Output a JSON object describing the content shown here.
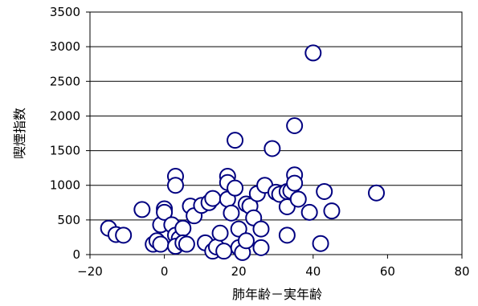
{
  "chart_data": {
    "type": "scatter",
    "xlabel": "肺年齢－実年齢",
    "ylabel": "喫煙指数",
    "xlim": [
      -20,
      80
    ],
    "ylim": [
      0,
      3500
    ],
    "x_ticks": [
      -20,
      0,
      20,
      40,
      60,
      80
    ],
    "x_tick_labels": [
      "−20",
      "0",
      "20",
      "40",
      "60",
      "80"
    ],
    "y_ticks": [
      0,
      500,
      1000,
      1500,
      2000,
      2500,
      3000,
      3500
    ],
    "y_tick_labels": [
      "0",
      "500",
      "1000",
      "1500",
      "2000",
      "2500",
      "3000",
      "3500"
    ],
    "grid": {
      "horizontal": true,
      "vertical": false
    },
    "legend": "none",
    "marker": {
      "shape": "circle",
      "fill": "#ffffff",
      "stroke": "#000080"
    },
    "points": [
      {
        "x": -15,
        "y": 380
      },
      {
        "x": -13,
        "y": 290
      },
      {
        "x": -11,
        "y": 280
      },
      {
        "x": -6,
        "y": 650
      },
      {
        "x": -3,
        "y": 150
      },
      {
        "x": -2,
        "y": 200
      },
      {
        "x": -1,
        "y": 430
      },
      {
        "x": -1,
        "y": 150
      },
      {
        "x": 0,
        "y": 660
      },
      {
        "x": 0,
        "y": 610
      },
      {
        "x": 2,
        "y": 430
      },
      {
        "x": 3,
        "y": 1130
      },
      {
        "x": 3,
        "y": 1000
      },
      {
        "x": 3,
        "y": 280
      },
      {
        "x": 4,
        "y": 230
      },
      {
        "x": 3,
        "y": 120
      },
      {
        "x": 5,
        "y": 380
      },
      {
        "x": 5,
        "y": 170
      },
      {
        "x": 6,
        "y": 150
      },
      {
        "x": 7,
        "y": 700
      },
      {
        "x": 8,
        "y": 560
      },
      {
        "x": 10,
        "y": 710
      },
      {
        "x": 11,
        "y": 170
      },
      {
        "x": 12,
        "y": 750
      },
      {
        "x": 13,
        "y": 810
      },
      {
        "x": 13,
        "y": 50
      },
      {
        "x": 14,
        "y": 110
      },
      {
        "x": 15,
        "y": 310
      },
      {
        "x": 16,
        "y": 50
      },
      {
        "x": 17,
        "y": 1130
      },
      {
        "x": 17,
        "y": 1040
      },
      {
        "x": 17,
        "y": 800
      },
      {
        "x": 18,
        "y": 600
      },
      {
        "x": 19,
        "y": 960
      },
      {
        "x": 19,
        "y": 1650
      },
      {
        "x": 20,
        "y": 370
      },
      {
        "x": 20,
        "y": 100
      },
      {
        "x": 21,
        "y": 30
      },
      {
        "x": 22,
        "y": 730
      },
      {
        "x": 22,
        "y": 200
      },
      {
        "x": 23,
        "y": 700
      },
      {
        "x": 24,
        "y": 530
      },
      {
        "x": 25,
        "y": 880
      },
      {
        "x": 26,
        "y": 370
      },
      {
        "x": 26,
        "y": 100
      },
      {
        "x": 27,
        "y": 1000
      },
      {
        "x": 29,
        "y": 1530
      },
      {
        "x": 30,
        "y": 900
      },
      {
        "x": 31,
        "y": 870
      },
      {
        "x": 33,
        "y": 910
      },
      {
        "x": 33,
        "y": 690
      },
      {
        "x": 33,
        "y": 280
      },
      {
        "x": 34,
        "y": 920
      },
      {
        "x": 35,
        "y": 1860
      },
      {
        "x": 35,
        "y": 1150
      },
      {
        "x": 35,
        "y": 1030
      },
      {
        "x": 36,
        "y": 800
      },
      {
        "x": 39,
        "y": 610
      },
      {
        "x": 40,
        "y": 2910
      },
      {
        "x": 42,
        "y": 160
      },
      {
        "x": 43,
        "y": 910
      },
      {
        "x": 45,
        "y": 630
      },
      {
        "x": 57,
        "y": 890
      }
    ]
  }
}
